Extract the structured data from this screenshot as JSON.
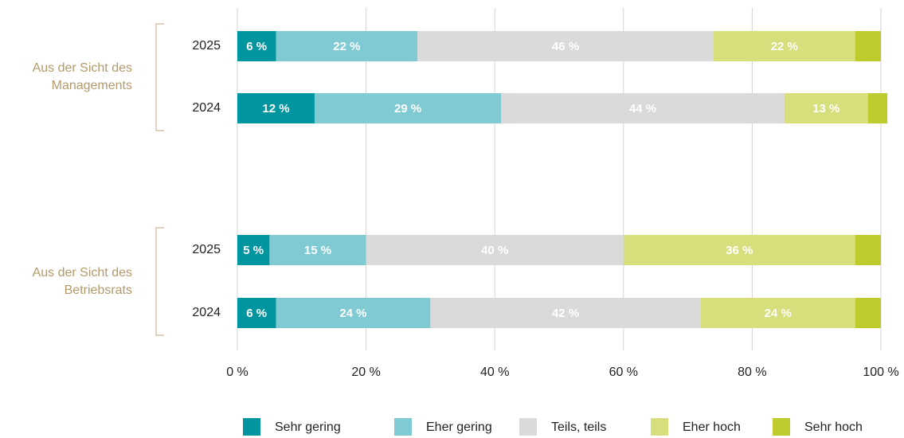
{
  "chart_data": {
    "type": "stacked-bar-horizontal",
    "group_labels": [
      "Aus der Sicht des Managements",
      "Aus der Sicht des Betriebsrats"
    ],
    "categories": [
      "2025",
      "2024",
      "2025",
      "2024"
    ],
    "series": [
      {
        "name": "Sehr gering",
        "color": "#00959f",
        "values": [
          6,
          12,
          5,
          6
        ],
        "value_labels": [
          "6 %",
          "12 %",
          "5 %",
          "6 %"
        ]
      },
      {
        "name": "Eher gering",
        "color": "#7fcad3",
        "values": [
          22,
          29,
          15,
          24
        ],
        "value_labels": [
          "22 %",
          "29 %",
          "15 %",
          "24 %"
        ]
      },
      {
        "name": "Teils, teils",
        "color": "#dadada",
        "values": [
          46,
          44,
          40,
          42
        ],
        "value_labels": [
          "46 %",
          "44 %",
          "40 %",
          "42 %"
        ]
      },
      {
        "name": "Eher hoch",
        "color": "#d6df7b",
        "values": [
          22,
          13,
          36,
          24
        ],
        "value_labels": [
          "22 %",
          "13 %",
          "36 %",
          "24 %"
        ]
      },
      {
        "name": "Sehr hoch",
        "color": "#bfcb2d",
        "values": [
          4,
          3,
          4,
          4
        ]
      }
    ],
    "xlim": [
      0,
      100
    ],
    "xticks": [
      {
        "value": 0,
        "label": "0 %"
      },
      {
        "value": 20,
        "label": "20 %"
      },
      {
        "value": 40,
        "label": "40 %"
      },
      {
        "value": 60,
        "label": "60 %"
      },
      {
        "value": 80,
        "label": "80 %"
      },
      {
        "value": 100,
        "label": "100 %"
      }
    ],
    "grid": true,
    "legend": "bottom"
  }
}
